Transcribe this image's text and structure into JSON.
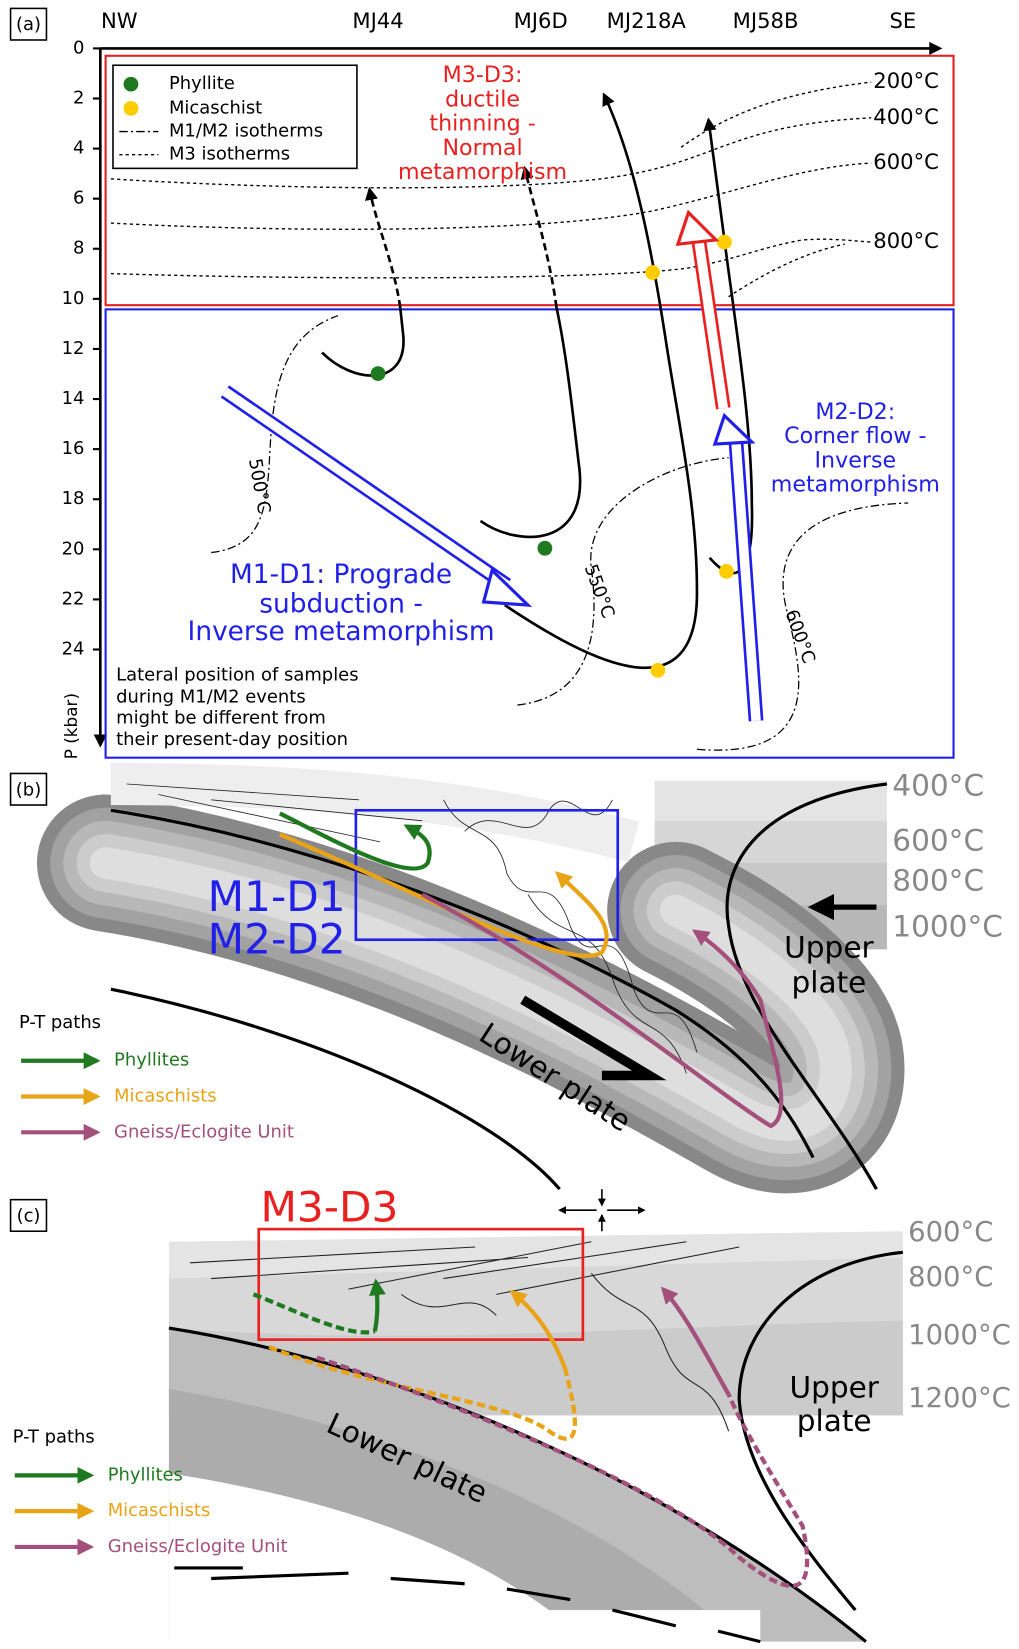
{
  "panel_a": {
    "label": "(a)",
    "top_axis": [
      "NW",
      "MJ44",
      "MJ6D",
      "MJ218A",
      "MJ58B",
      "SE"
    ],
    "pressure_ticks": [
      0,
      2,
      4,
      6,
      8,
      10,
      12,
      14,
      16,
      18,
      20,
      22,
      24
    ],
    "pressure_axis_label": "P (kbar)",
    "legend": [
      "Phyllite",
      "Micaschist",
      "M1/M2 isotherms",
      "M3 isotherms"
    ],
    "m3_isotherm_labels": [
      "200°C",
      "400°C",
      "600°C",
      "800°C"
    ],
    "m12_isotherm_labels": [
      "500°C",
      "550°C",
      "600°C"
    ],
    "m3_d3_text": [
      "M3-D3:",
      "ductile",
      "thinning -",
      "Normal",
      "metamorphism"
    ],
    "m2_d2_text": [
      "M2-D2:",
      "Corner flow -",
      "Inverse",
      "metamorphism"
    ],
    "m1_d1_text": [
      "M1-D1: Prograde",
      "subduction -",
      "Inverse metamorphism"
    ],
    "note": [
      "Lateral position of samples",
      "during M1/M2 events",
      "might be different from",
      "their present-day position"
    ]
  },
  "panel_b": {
    "label": "(b)",
    "isotherm_labels": [
      "400°C",
      "600°C",
      "800°C",
      "1000°C"
    ],
    "box_text": [
      "M1-D1",
      "M2-D2"
    ],
    "upper_plate": [
      "Upper",
      "plate"
    ],
    "lower_plate": "Lower plate",
    "legend_title": "P-T paths",
    "legend": [
      "Phyllites",
      "Micaschists",
      "Gneiss/Eclogite Unit"
    ]
  },
  "panel_c": {
    "label": "(c)",
    "box_text": "M3-D3",
    "isotherm_labels": [
      "600°C",
      "800°C",
      "1000°C",
      "1200°C"
    ],
    "upper_plate": [
      "Upper",
      "plate"
    ],
    "lower_plate": "Lower plate",
    "legend_title": "P-T paths",
    "legend": [
      "Phyllites",
      "Micaschists",
      "Gneiss/Eclogite Unit"
    ]
  }
}
